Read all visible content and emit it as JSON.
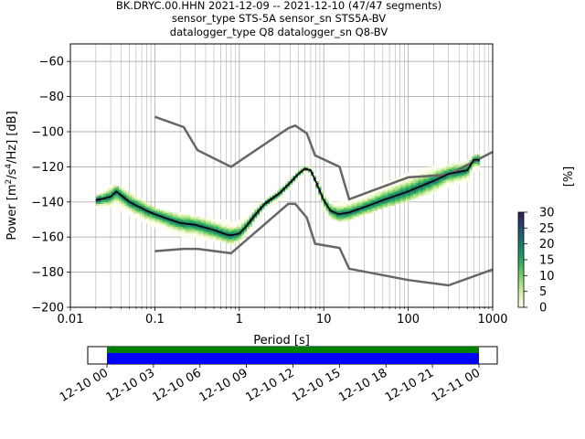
{
  "title_lines": [
    "BK.DRYC.00.HHN   2021-12-09 -- 2021-12-10  (47/47 segments)",
    "sensor_type STS-5A sensor_sn STS5A-BV",
    "datalogger_type Q8 datalogger_sn Q8-BV"
  ],
  "colorbar": {
    "label": "[%]",
    "ticks": [
      "0",
      "5",
      "10",
      "15",
      "20",
      "25",
      "30"
    ],
    "range": [
      0,
      30
    ],
    "colors": [
      "#fdfdf0",
      "#e6f5c2",
      "#b6e48c",
      "#79cf6e",
      "#3fb462",
      "#1f9668",
      "#1a7b70",
      "#245c74",
      "#2c3d6e",
      "#2d1e4f"
    ]
  },
  "timeline": {
    "ticks": [
      "12-10 00",
      "12-10 03",
      "12-10 06",
      "12-10 09",
      "12-10 12",
      "12-10 15",
      "12-10 18",
      "12-10 21",
      "12-11 00"
    ],
    "segment_colors": [
      "#008000",
      "#0000ff"
    ]
  },
  "chart_data": {
    "type": "heatmap",
    "xlabel": "Period [s]",
    "ylabel_parts": [
      "Power [m",
      "2",
      "/s",
      "4",
      "/Hz] [dB]"
    ],
    "xscale": "log",
    "xlim": [
      0.01,
      1000
    ],
    "ylim": [
      -200,
      -50
    ],
    "xticks": [
      {
        "v": 0.01,
        "label": "0.01"
      },
      {
        "v": 0.1,
        "label": "0.1"
      },
      {
        "v": 1,
        "label": "1"
      },
      {
        "v": 10,
        "label": "10"
      },
      {
        "v": 100,
        "label": "100"
      },
      {
        "v": 1000,
        "label": "1000"
      }
    ],
    "yticks": [
      -200,
      -180,
      -160,
      -140,
      -120,
      -100,
      -80,
      -60
    ],
    "grid": true,
    "nhnm_x": [
      0.1,
      0.22,
      0.32,
      0.8,
      3.8,
      4.6,
      6.3,
      7.9,
      15.4,
      20,
      100,
      300,
      1000
    ],
    "nhnm_y": [
      -168,
      -166.7,
      -166.7,
      -169.2,
      -141.1,
      -141.1,
      -149,
      -163.8,
      -166.2,
      -178,
      -184.5,
      -187.5,
      -178.5
    ],
    "nlnm_x": [
      0.1,
      0.22,
      0.32,
      0.8,
      3.8,
      4.6,
      6.3,
      7.9,
      15.4,
      20,
      100,
      300,
      1000
    ],
    "nlnm_y": [
      -91.5,
      -97.4,
      -110.5,
      -120,
      -98,
      -96.5,
      -101,
      -113.5,
      -120,
      -138.5,
      -126,
      -124.5,
      -111.5
    ],
    "median_x": [
      0.02,
      0.025,
      0.03,
      0.035,
      0.05,
      0.08,
      0.1,
      0.15,
      0.2,
      0.3,
      0.5,
      0.7,
      0.8,
      1,
      1.2,
      1.5,
      2,
      3,
      4,
      5,
      6,
      7,
      8,
      10,
      12,
      15,
      20,
      30,
      50,
      100,
      200,
      300,
      500,
      600,
      700
    ],
    "median_y": [
      -139,
      -138,
      -137,
      -134,
      -140,
      -145,
      -147,
      -150,
      -152,
      -153,
      -156,
      -158.5,
      -159,
      -158,
      -154,
      -148,
      -141,
      -135,
      -129,
      -124,
      -121,
      -122,
      -128,
      -139,
      -145,
      -147,
      -146,
      -143,
      -139,
      -134,
      -128,
      -124,
      -122,
      -116,
      -116
    ],
    "pdf_upper_y": [
      -137,
      -134,
      -130,
      -131,
      -135,
      -141,
      -144,
      -146,
      -147,
      -148,
      -150,
      -151,
      -152,
      -151,
      -149,
      -145,
      -139,
      -133,
      -127,
      -123,
      -120,
      -121,
      -126,
      -135,
      -140,
      -140,
      -139,
      -136,
      -130,
      -124,
      -120,
      -119,
      -117,
      -114,
      -111
    ],
    "pdf_lower_y": [
      -144,
      -143,
      -142,
      -143,
      -147,
      -152,
      -154,
      -157,
      -159,
      -160,
      -162,
      -163,
      -164,
      -162,
      -158,
      -152,
      -144,
      -138,
      -132,
      -127,
      -123,
      -124,
      -131,
      -144,
      -149,
      -151,
      -150,
      -147,
      -143,
      -139,
      -134,
      -131,
      -128,
      -122,
      -121
    ]
  }
}
